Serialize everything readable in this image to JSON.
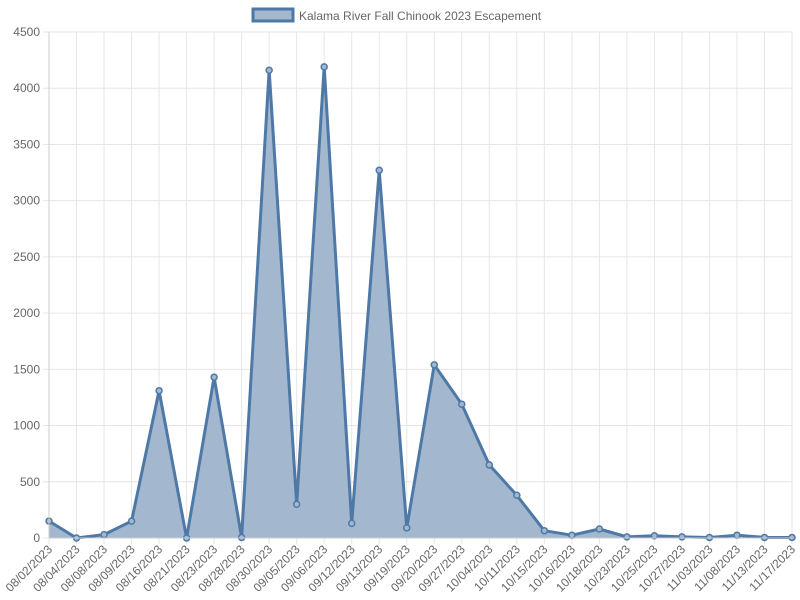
{
  "chart_data": {
    "type": "area",
    "legend": {
      "label": "Kalama River Fall Chinook 2023 Escapement",
      "position": "top"
    },
    "x": [
      "08/02/2023",
      "08/04/2023",
      "08/08/2023",
      "08/09/2023",
      "08/16/2023",
      "08/21/2023",
      "08/23/2023",
      "08/28/2023",
      "08/30/2023",
      "09/05/2023",
      "09/06/2023",
      "09/12/2023",
      "09/13/2023",
      "09/19/2023",
      "09/20/2023",
      "09/27/2023",
      "10/04/2023",
      "10/11/2023",
      "10/15/2023",
      "10/16/2023",
      "10/18/2023",
      "10/23/2023",
      "10/25/2023",
      "10/27/2023",
      "11/03/2023",
      "11/08/2023",
      "11/13/2023",
      "11/17/2023"
    ],
    "series": [
      {
        "name": "Kalama River Fall Chinook 2023 Escapement",
        "values": [
          150,
          0,
          30,
          150,
          1310,
          0,
          1430,
          5,
          4160,
          300,
          4190,
          130,
          3270,
          90,
          1540,
          1190,
          650,
          380,
          65,
          25,
          80,
          10,
          20,
          10,
          5,
          25,
          5,
          5
        ]
      }
    ],
    "ylim": [
      0,
      4500
    ],
    "yticks": [
      0,
      500,
      1000,
      1500,
      2000,
      2500,
      3000,
      3500,
      4000,
      4500
    ],
    "grid": true,
    "colors": {
      "line": "#4e79a7",
      "fill": "#a3b8cf",
      "grid": "#e6e6e6",
      "text": "#666666"
    }
  }
}
